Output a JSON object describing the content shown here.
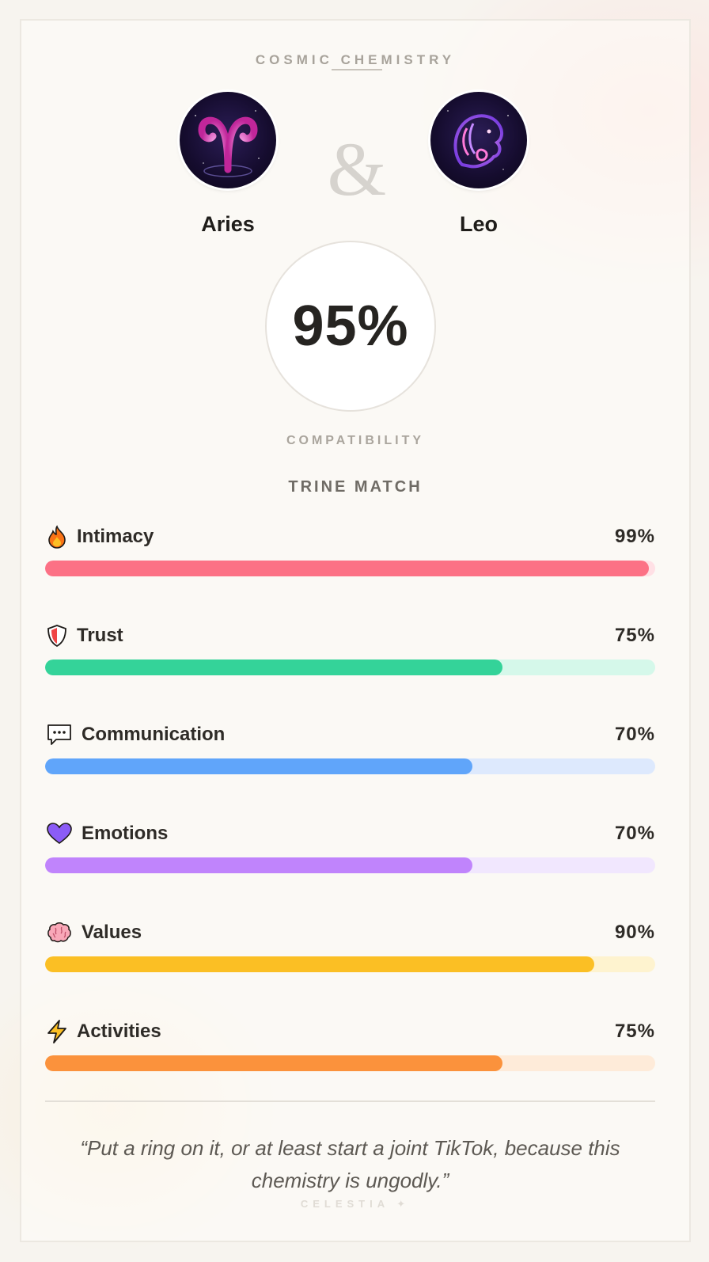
{
  "header": {
    "kicker": "COSMIC CHEMISTRY"
  },
  "signs": [
    {
      "name": "Aries",
      "icon": "aries-glyph-icon"
    },
    {
      "name": "Leo",
      "icon": "leo-lion-icon"
    }
  ],
  "connector": "&",
  "score": {
    "value": "95%",
    "label": "COMPATIBILITY"
  },
  "match_type": "TRINE MATCH",
  "metrics": [
    {
      "name": "Intimacy",
      "value_text": "99%",
      "value": 99,
      "icon": "fire-icon",
      "color": "#fc7185",
      "track": "#ffe0e5"
    },
    {
      "name": "Trust",
      "value_text": "75%",
      "value": 75,
      "icon": "shield-icon",
      "color": "#34d399",
      "track": "#d5f8ea"
    },
    {
      "name": "Communication",
      "value_text": "70%",
      "value": 70,
      "icon": "speech-bubble-icon",
      "color": "#60a5fa",
      "track": "#dde9fd"
    },
    {
      "name": "Emotions",
      "value_text": "70%",
      "value": 70,
      "icon": "heart-icon",
      "color": "#c084fc",
      "track": "#f1e7fe"
    },
    {
      "name": "Values",
      "value_text": "90%",
      "value": 90,
      "icon": "brain-icon",
      "color": "#fbbf24",
      "track": "#fef3cf"
    },
    {
      "name": "Activities",
      "value_text": "75%",
      "value": 75,
      "icon": "lightning-icon",
      "color": "#fb923c",
      "track": "#feebd9"
    }
  ],
  "quote": "“Put a ring on it, or at least start a joint TikTok, because this chemistry is ungodly.”",
  "brand": "CELESTIA ✦"
}
